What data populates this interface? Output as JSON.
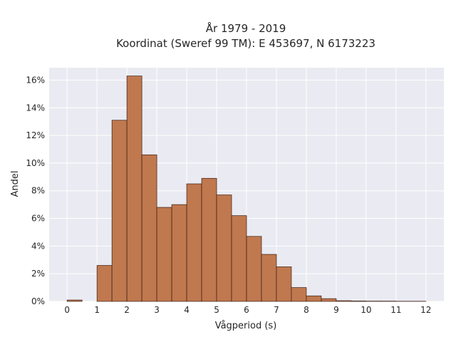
{
  "chart_data": {
    "type": "bar",
    "title": [
      "År 1979 - 2019",
      "Koordinat (Sweref 99 TM): E 453697, N 6173223"
    ],
    "xlabel": "Vågperiod (s)",
    "ylabel": "Andel",
    "xlim": [
      -0.6,
      12.6
    ],
    "ylim": [
      0,
      16.9
    ],
    "xticks": [
      0,
      1,
      2,
      3,
      4,
      5,
      6,
      7,
      8,
      9,
      10,
      11,
      12
    ],
    "yticks": [
      0,
      2,
      4,
      6,
      8,
      10,
      12,
      14,
      16
    ],
    "ytick_suffix": "%",
    "grid": true,
    "bin_width": 0.5,
    "bins": [
      {
        "x0": 0.0,
        "value": 0.1
      },
      {
        "x0": 0.5,
        "value": 0.0
      },
      {
        "x0": 1.0,
        "value": 2.6
      },
      {
        "x0": 1.5,
        "value": 13.1
      },
      {
        "x0": 2.0,
        "value": 16.3
      },
      {
        "x0": 2.5,
        "value": 10.6
      },
      {
        "x0": 3.0,
        "value": 6.8
      },
      {
        "x0": 3.5,
        "value": 7.0
      },
      {
        "x0": 4.0,
        "value": 8.5
      },
      {
        "x0": 4.5,
        "value": 8.9
      },
      {
        "x0": 5.0,
        "value": 7.7
      },
      {
        "x0": 5.5,
        "value": 6.2
      },
      {
        "x0": 6.0,
        "value": 4.7
      },
      {
        "x0": 6.5,
        "value": 3.4
      },
      {
        "x0": 7.0,
        "value": 2.5
      },
      {
        "x0": 7.5,
        "value": 1.0
      },
      {
        "x0": 8.0,
        "value": 0.4
      },
      {
        "x0": 8.5,
        "value": 0.2
      },
      {
        "x0": 9.0,
        "value": 0.05
      },
      {
        "x0": 9.5,
        "value": 0.03
      },
      {
        "x0": 10.0,
        "value": 0.02
      },
      {
        "x0": 10.5,
        "value": 0.02
      },
      {
        "x0": 11.0,
        "value": 0.01
      },
      {
        "x0": 11.5,
        "value": 0.01
      }
    ],
    "colors": {
      "bar": "#c0784f",
      "edge": "#3a1e10",
      "background": "#eaeaf2",
      "grid": "#ffffff"
    }
  }
}
